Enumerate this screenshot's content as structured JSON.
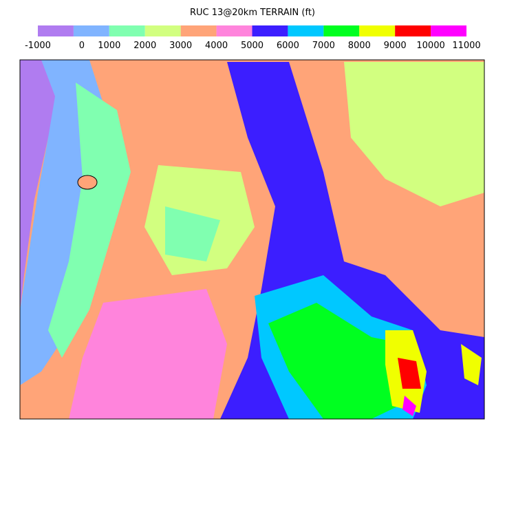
{
  "title": "RUC 13@20km TERRAIN (ft)",
  "colorbar": {
    "levels": [
      -1000,
      0,
      1000,
      2000,
      3000,
      4000,
      5000,
      6000,
      7000,
      8000,
      9000,
      10000,
      11000
    ],
    "colors": [
      "#b07cf0",
      "#80b4ff",
      "#80ffb0",
      "#d2ff80",
      "#ffa478",
      "#ff84dc",
      "#3c1eff",
      "#00c8ff",
      "#00ff20",
      "#f0ff00",
      "#ff0000",
      "#ff00ff"
    ]
  }
}
